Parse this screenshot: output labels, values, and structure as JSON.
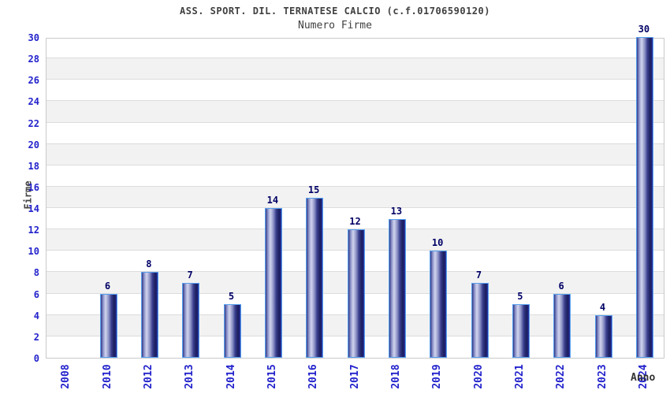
{
  "chart_data": {
    "type": "bar",
    "title": "ASS. SPORT. DIL. TERNATESE CALCIO (c.f.01706590120)",
    "subtitle": "Numero Firme",
    "categories": [
      "2008",
      "2010",
      "2012",
      "2013",
      "2014",
      "2015",
      "2016",
      "2017",
      "2018",
      "2019",
      "2020",
      "2021",
      "2022",
      "2023",
      "2024"
    ],
    "values": [
      0,
      6,
      8,
      7,
      5,
      14,
      15,
      12,
      13,
      10,
      7,
      5,
      6,
      4,
      30
    ],
    "xlabel": "Anno",
    "ylabel": "Firme",
    "ylim": [
      0,
      30
    ],
    "ytick_step": 2,
    "grid": true,
    "band_fill": true,
    "legend": "none",
    "value_labels_shown": true
  },
  "colors": {
    "background": "#ffffff",
    "title_text": "#404040",
    "axis_title_text": "#333333",
    "tick_label": "#2222cc",
    "value_label": "#000066",
    "bar_border": "#55a0f0",
    "bar_dark": "#1a1d62",
    "bar_light": "#d2d5ee",
    "band_gray": "#f2f2f2",
    "gridline": "#dcdcdc",
    "plot_border": "#c9c9c9"
  }
}
